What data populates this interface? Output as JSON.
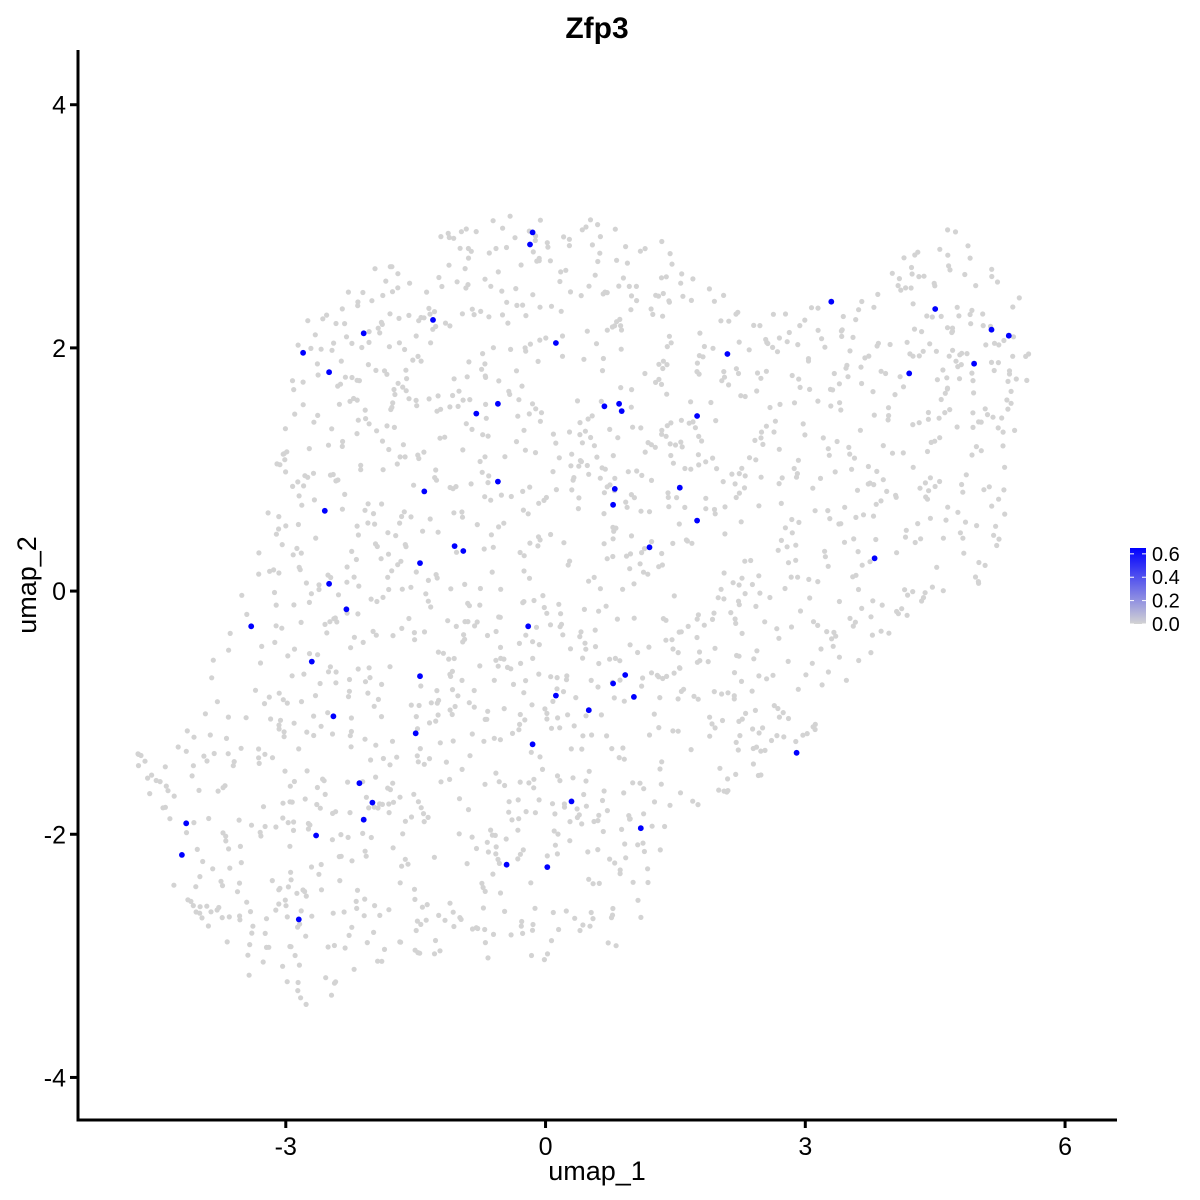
{
  "chart_data": {
    "type": "scatter",
    "title": "Zfp3",
    "xlabel": "umap_1",
    "ylabel": "umap_2",
    "xlim": [
      -5.4,
      6.6
    ],
    "ylim": [
      -4.35,
      4.45
    ],
    "x_ticks": [
      -3,
      0,
      3,
      6
    ],
    "x_tick_labels": [
      "-3",
      "0",
      "3",
      "6"
    ],
    "y_ticks": [
      -4,
      -2,
      0,
      2,
      4
    ],
    "y_tick_labels": [
      "-4",
      "-2",
      "0",
      "2",
      "4"
    ],
    "grid": false,
    "legend": {
      "placement": "right",
      "type": "color-gradient",
      "low_color": "#d3d3d3",
      "high_color": "#0000ff",
      "range": [
        0,
        0.65
      ],
      "ticks": [
        0.0,
        0.2,
        0.4,
        0.6
      ],
      "tick_labels": [
        "0.0",
        "0.2",
        "0.4",
        "0.6"
      ]
    },
    "expressing_color": "#0000ff",
    "background_color": "#d3d3d3",
    "expressing_cells": [
      [
        -0.15,
        2.95
      ],
      [
        -0.18,
        2.85
      ],
      [
        0.12,
        2.04
      ],
      [
        -1.3,
        2.23
      ],
      [
        -2.1,
        2.12
      ],
      [
        -2.8,
        1.96
      ],
      [
        -2.5,
        1.8
      ],
      [
        -0.55,
        1.54
      ],
      [
        -0.8,
        1.46
      ],
      [
        0.68,
        1.52
      ],
      [
        0.85,
        1.54
      ],
      [
        0.88,
        1.48
      ],
      [
        1.75,
        1.44
      ],
      [
        2.1,
        1.95
      ],
      [
        3.3,
        2.38
      ],
      [
        4.5,
        2.32
      ],
      [
        5.15,
        2.15
      ],
      [
        5.35,
        2.1
      ],
      [
        4.95,
        1.87
      ],
      [
        4.2,
        1.79
      ],
      [
        -0.55,
        0.9
      ],
      [
        0.8,
        0.84
      ],
      [
        0.78,
        0.71
      ],
      [
        1.55,
        0.85
      ],
      [
        1.75,
        0.58
      ],
      [
        1.2,
        0.36
      ],
      [
        -1.4,
        0.82
      ],
      [
        -1.05,
        0.37
      ],
      [
        -0.95,
        0.33
      ],
      [
        -1.45,
        0.23
      ],
      [
        -2.55,
        0.66
      ],
      [
        -2.5,
        0.06
      ],
      [
        -2.3,
        -0.15
      ],
      [
        -3.4,
        -0.29
      ],
      [
        -2.7,
        -0.58
      ],
      [
        -2.45,
        -1.03
      ],
      [
        -1.45,
        -0.7
      ],
      [
        -1.5,
        -1.17
      ],
      [
        -0.2,
        -0.29
      ],
      [
        0.12,
        -0.86
      ],
      [
        0.5,
        -0.98
      ],
      [
        0.78,
        -0.76
      ],
      [
        0.92,
        -0.69
      ],
      [
        1.02,
        -0.87
      ],
      [
        -0.15,
        -1.26
      ],
      [
        3.8,
        0.27
      ],
      [
        2.9,
        -1.33
      ],
      [
        0.3,
        -1.73
      ],
      [
        1.1,
        -1.95
      ],
      [
        -2.15,
        -1.58
      ],
      [
        -2.0,
        -1.74
      ],
      [
        -2.1,
        -1.88
      ],
      [
        -2.65,
        -2.01
      ],
      [
        -4.15,
        -1.91
      ],
      [
        -4.2,
        -2.17
      ],
      [
        -0.45,
        -2.25
      ],
      [
        0.02,
        -2.27
      ],
      [
        -2.85,
        -2.7
      ]
    ],
    "background_cell_regions": [
      {
        "polygon": [
          [
            -4.8,
            -1.2
          ],
          [
            -4.5,
            -1.5
          ],
          [
            -4.35,
            -1.35
          ],
          [
            -3.6,
            -0.2
          ],
          [
            -3.35,
            0.4
          ],
          [
            -3.0,
            1.4
          ],
          [
            -2.9,
            2.0
          ],
          [
            -2.7,
            2.35
          ],
          [
            -2.2,
            2.55
          ],
          [
            -1.75,
            2.8
          ],
          [
            -0.8,
            3.05
          ],
          [
            -0.3,
            3.15
          ],
          [
            0.25,
            3.15
          ],
          [
            0.9,
            2.95
          ],
          [
            1.55,
            2.85
          ],
          [
            1.8,
            2.6
          ],
          [
            2.2,
            2.4
          ],
          [
            2.9,
            2.35
          ],
          [
            3.3,
            2.5
          ],
          [
            3.8,
            2.55
          ],
          [
            4.4,
            2.9
          ],
          [
            4.6,
            3.05
          ],
          [
            5.1,
            2.7
          ],
          [
            5.5,
            2.5
          ],
          [
            5.6,
            2.0
          ],
          [
            5.5,
            1.25
          ],
          [
            5.35,
            0.55
          ],
          [
            5.0,
            0.05
          ],
          [
            4.4,
            -0.15
          ],
          [
            4.0,
            -0.35
          ],
          [
            3.55,
            -0.7
          ],
          [
            3.2,
            -1.1
          ],
          [
            2.6,
            -1.5
          ],
          [
            2.2,
            -1.6
          ],
          [
            1.6,
            -1.9
          ],
          [
            1.3,
            -2.2
          ],
          [
            1.1,
            -2.7
          ],
          [
            0.9,
            -2.9
          ],
          [
            0.4,
            -3.0
          ],
          [
            0.1,
            -3.1
          ],
          [
            -0.5,
            -3.05
          ],
          [
            -1.1,
            -3.15
          ],
          [
            -1.45,
            -3.0
          ],
          [
            -1.9,
            -3.1
          ],
          [
            -2.3,
            -3.25
          ],
          [
            -2.6,
            -3.5
          ],
          [
            -3.1,
            -3.3
          ],
          [
            -3.7,
            -3.1
          ],
          [
            -3.9,
            -2.8
          ],
          [
            -4.3,
            -2.5
          ],
          [
            -4.3,
            -2.0
          ],
          [
            -4.5,
            -1.8
          ],
          [
            -4.7,
            -1.5
          ]
        ]
      }
    ]
  }
}
